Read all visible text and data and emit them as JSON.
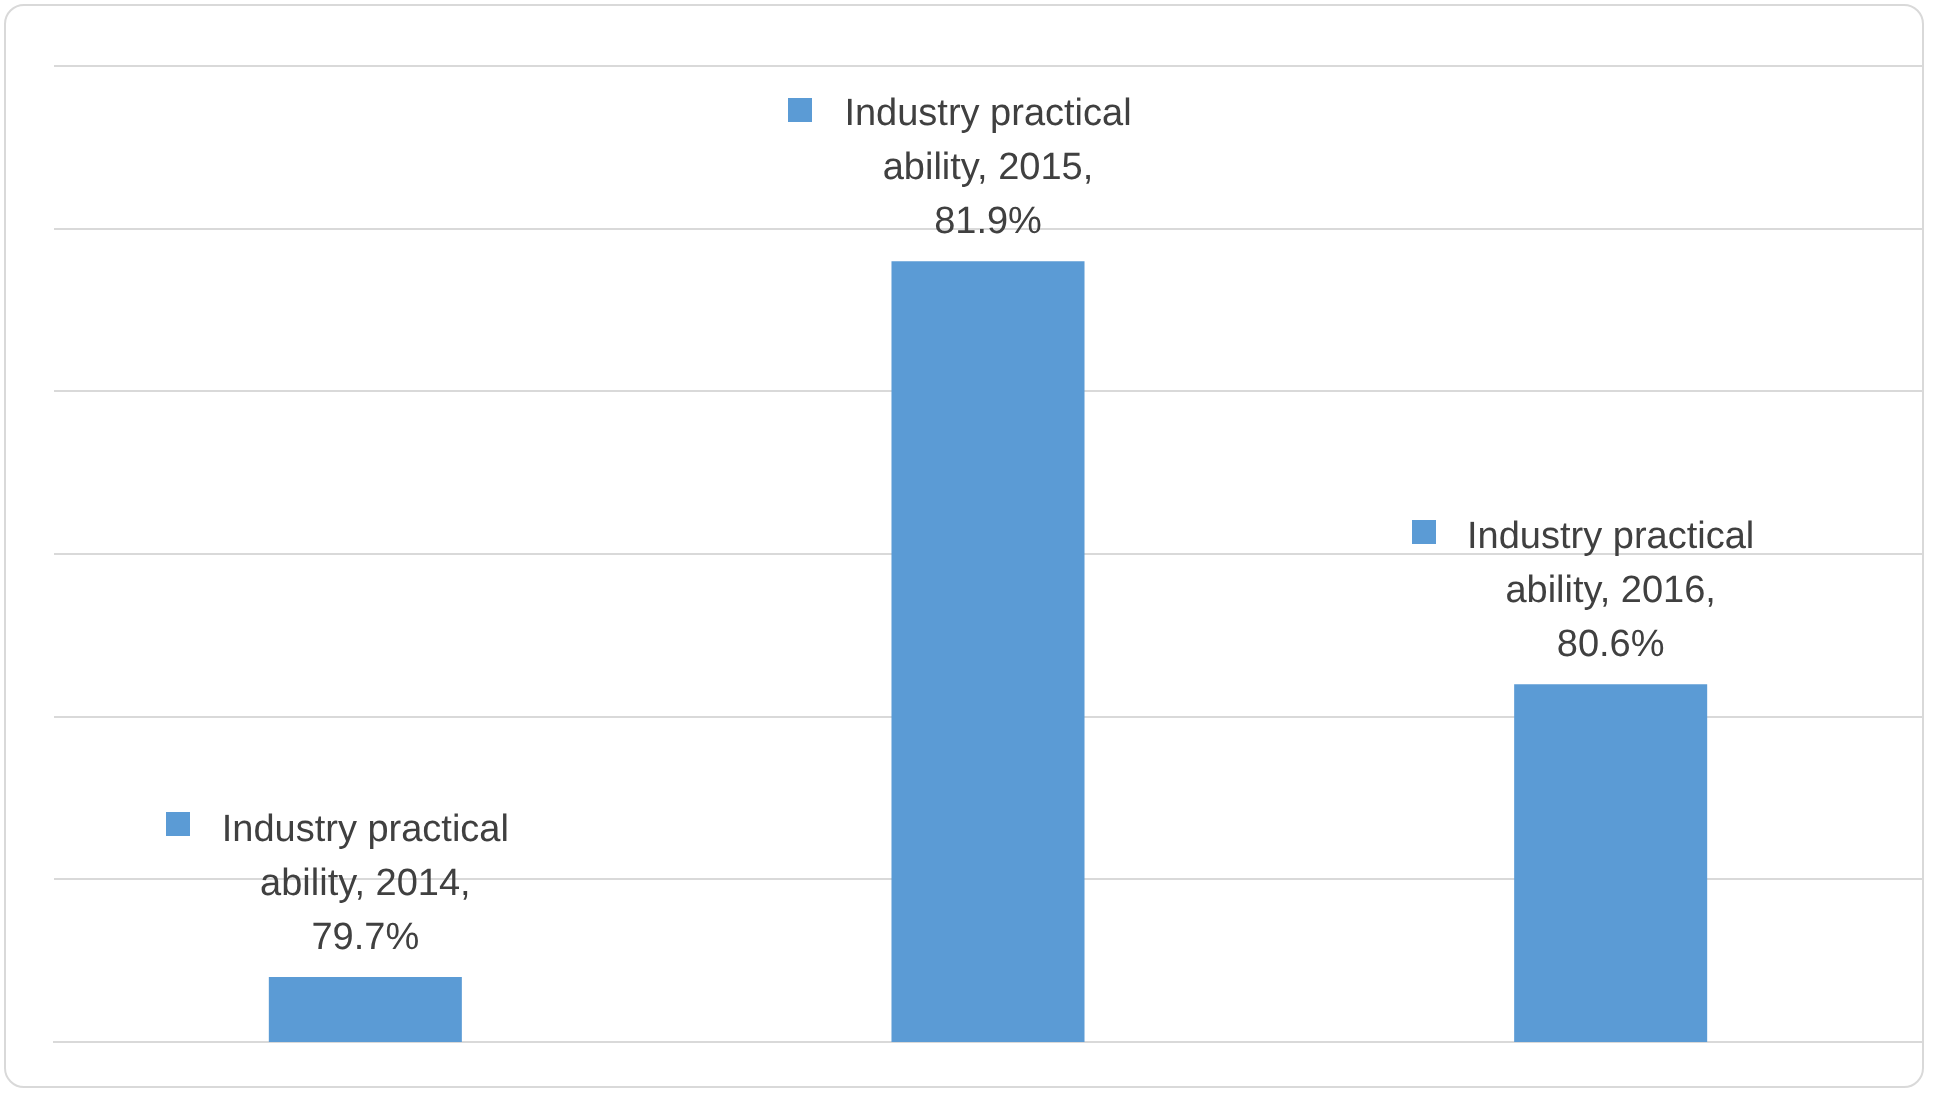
{
  "chart_data": {
    "type": "bar",
    "categories": [
      null,
      null,
      null
    ],
    "series": [
      {
        "color": "#5b9bd5",
        "values": [
          79.7,
          81.9,
          80.6
        ],
        "value_labels": [
          "Industry practical ability, 2014, 79.7%",
          "Industry practical ability, 2015, 81.9%",
          "Industry practical ability, 2016, 80.6%"
        ]
      }
    ],
    "grid": "y",
    "tick_labels": false,
    "legend": false
  }
}
